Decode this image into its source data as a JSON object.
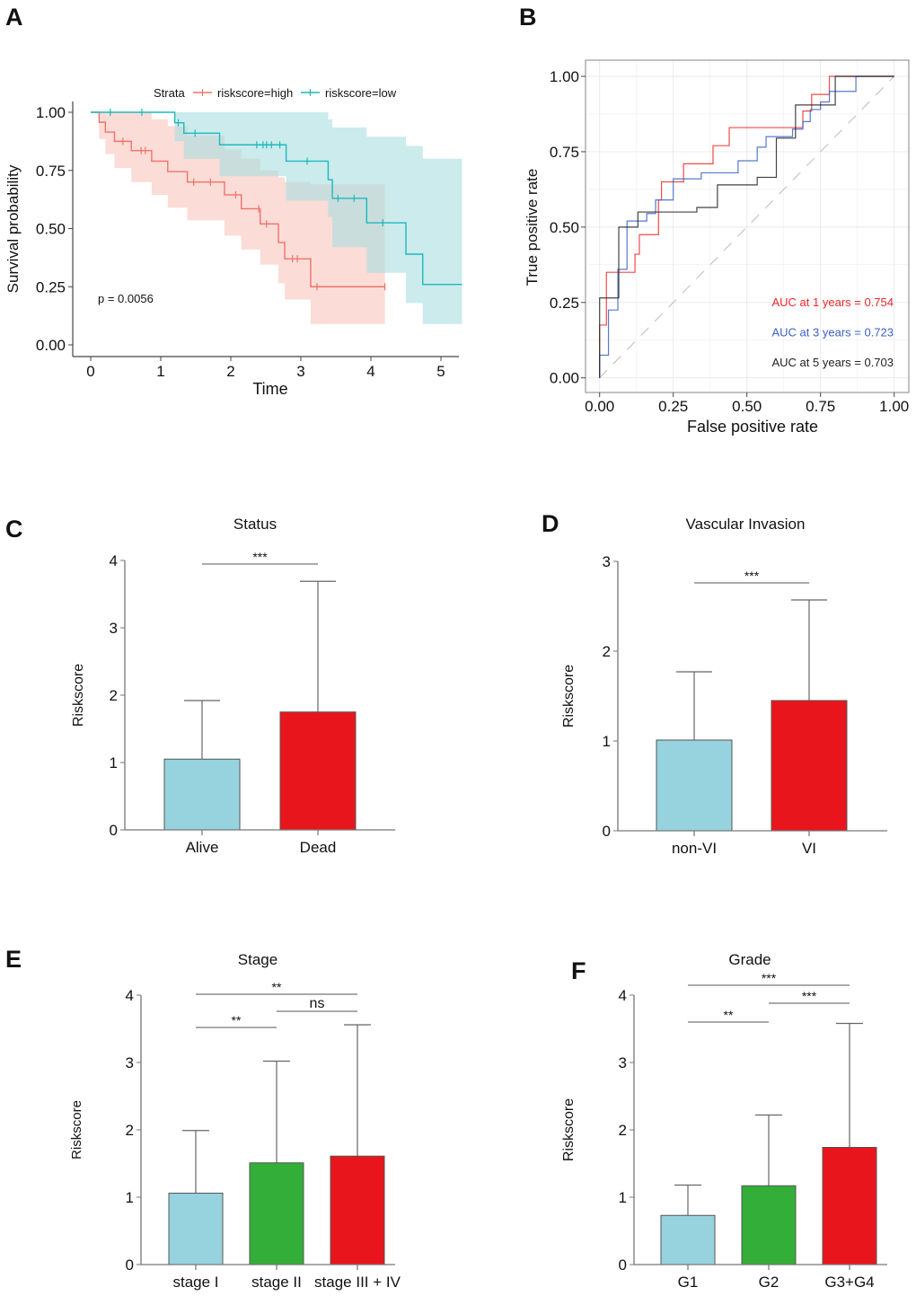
{
  "chart_data": [
    {
      "panel": "A",
      "type": "line",
      "subtype": "kaplan-meier",
      "xlabel": "Time",
      "ylabel": "Survival probability",
      "xlim": [
        0,
        5.3
      ],
      "ylim": [
        0,
        1
      ],
      "xticks": [
        "0",
        "1",
        "2",
        "3",
        "4",
        "5"
      ],
      "yticks": [
        "0.00",
        "0.25",
        "0.50",
        "0.75",
        "1.00"
      ],
      "legend": {
        "title": "Strata",
        "placement": "top"
      },
      "annotation": "p = 0.0056",
      "grid": false,
      "series": [
        {
          "name": "riskscore=high",
          "color": "#f0736b",
          "band_color": "#f8c4bd",
          "times": [
            0,
            0.12,
            0.21,
            0.34,
            0.58,
            0.87,
            1.1,
            1.38,
            1.91,
            2.15,
            2.42,
            2.68,
            2.77,
            3.14
          ],
          "end": 4.2,
          "surv": [
            1,
            0.957,
            0.915,
            0.875,
            0.835,
            0.79,
            0.745,
            0.7,
            0.645,
            0.585,
            0.52,
            0.44,
            0.37,
            0.25
          ],
          "lower": [
            1,
            0.885,
            0.82,
            0.76,
            0.7,
            0.645,
            0.59,
            0.535,
            0.47,
            0.41,
            0.345,
            0.265,
            0.195,
            0.09
          ],
          "upper": [
            1,
            1,
            1,
            1,
            1,
            0.97,
            0.94,
            0.9,
            0.84,
            0.8,
            0.75,
            0.72,
            0.7,
            0.69
          ],
          "censored": [
            0.46,
            0.72,
            0.78,
            1.47,
            1.71,
            2.07,
            2.4,
            2.51,
            2.88,
            2.95,
            3.23,
            4.2
          ]
        },
        {
          "name": "riskscore=low",
          "color": "#1fb8bb",
          "band_color": "#a9dde0",
          "times": [
            0,
            1.2,
            1.33,
            1.84,
            2.79,
            3.39,
            3.45,
            3.94,
            4.5,
            4.74
          ],
          "end": 5.3,
          "surv": [
            1,
            0.955,
            0.91,
            0.86,
            0.79,
            0.71,
            0.63,
            0.525,
            0.39,
            0.26
          ],
          "lower": [
            1,
            0.876,
            0.8,
            0.725,
            0.62,
            0.55,
            0.42,
            0.31,
            0.18,
            0.09
          ],
          "upper": [
            1,
            1,
            1,
            1,
            1,
            0.97,
            0.935,
            0.895,
            0.855,
            0.8
          ],
          "censored": [
            0.28,
            0.73,
            1.25,
            1.49,
            2.37,
            2.46,
            2.51,
            2.58,
            2.7,
            3.09,
            3.53,
            3.76,
            4.17
          ]
        }
      ]
    },
    {
      "panel": "B",
      "type": "line",
      "subtype": "roc",
      "xlabel": "False positive rate",
      "ylabel": "True positive rate",
      "xlim": [
        0,
        1
      ],
      "ylim": [
        0,
        1
      ],
      "xticks": [
        "0.00",
        "0.25",
        "0.50",
        "0.75",
        "1.00"
      ],
      "yticks": [
        "0.00",
        "0.25",
        "0.50",
        "0.75",
        "1.00"
      ],
      "grid": true,
      "series": [
        {
          "name": "AUC at 1 years = 0.754",
          "color": "#ee2a2a",
          "points": [
            [
              0,
              0
            ],
            [
              0,
              0.175
            ],
            [
              0.023,
              0.175
            ],
            [
              0.023,
              0.35
            ],
            [
              0.12,
              0.35
            ],
            [
              0.12,
              0.41
            ],
            [
              0.135,
              0.41
            ],
            [
              0.135,
              0.475
            ],
            [
              0.2,
              0.475
            ],
            [
              0.2,
              0.59
            ],
            [
              0.21,
              0.59
            ],
            [
              0.21,
              0.65
            ],
            [
              0.285,
              0.65
            ],
            [
              0.285,
              0.71
            ],
            [
              0.385,
              0.71
            ],
            [
              0.385,
              0.77
            ],
            [
              0.44,
              0.77
            ],
            [
              0.44,
              0.83
            ],
            [
              0.69,
              0.83
            ],
            [
              0.69,
              0.885
            ],
            [
              0.72,
              0.885
            ],
            [
              0.72,
              0.94
            ],
            [
              0.78,
              0.94
            ],
            [
              0.78,
              1
            ],
            [
              1,
              1
            ]
          ]
        },
        {
          "name": "AUC at 3 years = 0.723",
          "color": "#3b62c4",
          "points": [
            [
              0,
              0
            ],
            [
              0,
              0.075
            ],
            [
              0.03,
              0.075
            ],
            [
              0.03,
              0.225
            ],
            [
              0.062,
              0.225
            ],
            [
              0.062,
              0.36
            ],
            [
              0.093,
              0.36
            ],
            [
              0.093,
              0.52
            ],
            [
              0.16,
              0.52
            ],
            [
              0.16,
              0.545
            ],
            [
              0.19,
              0.545
            ],
            [
              0.19,
              0.59
            ],
            [
              0.25,
              0.59
            ],
            [
              0.25,
              0.66
            ],
            [
              0.345,
              0.66
            ],
            [
              0.345,
              0.68
            ],
            [
              0.47,
              0.68
            ],
            [
              0.47,
              0.72
            ],
            [
              0.535,
              0.72
            ],
            [
              0.535,
              0.765
            ],
            [
              0.565,
              0.765
            ],
            [
              0.565,
              0.8
            ],
            [
              0.655,
              0.8
            ],
            [
              0.655,
              0.825
            ],
            [
              0.69,
              0.825
            ],
            [
              0.69,
              0.85
            ],
            [
              0.715,
              0.85
            ],
            [
              0.715,
              0.89
            ],
            [
              0.75,
              0.89
            ],
            [
              0.75,
              0.915
            ],
            [
              0.78,
              0.915
            ],
            [
              0.78,
              0.95
            ],
            [
              0.87,
              0.95
            ],
            [
              0.87,
              1
            ],
            [
              1,
              1
            ]
          ]
        },
        {
          "name": "AUC at 5 years = 0.703",
          "color": "#222222",
          "points": [
            [
              0,
              0
            ],
            [
              0,
              0.265
            ],
            [
              0.065,
              0.265
            ],
            [
              0.065,
              0.5
            ],
            [
              0.13,
              0.5
            ],
            [
              0.13,
              0.55
            ],
            [
              0.33,
              0.55
            ],
            [
              0.33,
              0.565
            ],
            [
              0.4,
              0.565
            ],
            [
              0.4,
              0.64
            ],
            [
              0.535,
              0.64
            ],
            [
              0.535,
              0.665
            ],
            [
              0.6,
              0.665
            ],
            [
              0.6,
              0.795
            ],
            [
              0.665,
              0.795
            ],
            [
              0.665,
              0.905
            ],
            [
              0.8,
              0.905
            ],
            [
              0.8,
              1
            ],
            [
              1,
              1
            ]
          ]
        }
      ]
    },
    {
      "panel": "C",
      "type": "bar",
      "title": "Status",
      "ylabel": "Riskscore",
      "ylim": [
        0,
        4
      ],
      "yticks": [
        "0",
        "1",
        "2",
        "3",
        "4"
      ],
      "categories": [
        "Alive",
        "Dead"
      ],
      "values": [
        1.05,
        1.75
      ],
      "error_upper": [
        1.92,
        3.69
      ],
      "colors": [
        "#96d3de",
        "#e8161c"
      ],
      "significance": [
        {
          "from": 0,
          "to": 1,
          "label": "***"
        }
      ]
    },
    {
      "panel": "D",
      "type": "bar",
      "title": "Vascular Invasion",
      "ylabel": "Riskscore",
      "ylim": [
        0,
        3
      ],
      "yticks": [
        "0",
        "1",
        "2",
        "3"
      ],
      "categories": [
        "non-VI",
        "VI"
      ],
      "values": [
        1.01,
        1.45
      ],
      "error_upper": [
        1.77,
        2.57
      ],
      "colors": [
        "#96d3de",
        "#e8161c"
      ],
      "significance": [
        {
          "from": 0,
          "to": 1,
          "label": "***"
        }
      ]
    },
    {
      "panel": "E",
      "type": "bar",
      "title": "Stage",
      "ylabel": "Riskscore",
      "ylim": [
        0,
        4
      ],
      "yticks": [
        "0",
        "1",
        "2",
        "3",
        "4"
      ],
      "categories": [
        "stage I",
        "stage II",
        "stage III + IV"
      ],
      "values": [
        1.06,
        1.51,
        1.61
      ],
      "error_upper": [
        1.99,
        3.02,
        3.56
      ],
      "colors": [
        "#96d3de",
        "#33ae38",
        "#e8161c"
      ],
      "significance": [
        {
          "from": 0,
          "to": 2,
          "label": "**"
        },
        {
          "from": 1,
          "to": 2,
          "label": "ns"
        },
        {
          "from": 0,
          "to": 1,
          "label": "**"
        }
      ]
    },
    {
      "panel": "F",
      "type": "bar",
      "title": "Grade",
      "ylabel": "Riskscore",
      "ylim": [
        0,
        4
      ],
      "yticks": [
        "0",
        "1",
        "2",
        "3",
        "4"
      ],
      "categories": [
        "G1",
        "G2",
        "G3+G4"
      ],
      "values": [
        0.73,
        1.17,
        1.74
      ],
      "error_upper": [
        1.18,
        2.22,
        3.58
      ],
      "colors": [
        "#96d3de",
        "#33ae38",
        "#e8161c"
      ],
      "significance": [
        {
          "from": 0,
          "to": 2,
          "label": "***"
        },
        {
          "from": 1,
          "to": 2,
          "label": "***"
        },
        {
          "from": 0,
          "to": 1,
          "label": "**"
        }
      ]
    }
  ]
}
